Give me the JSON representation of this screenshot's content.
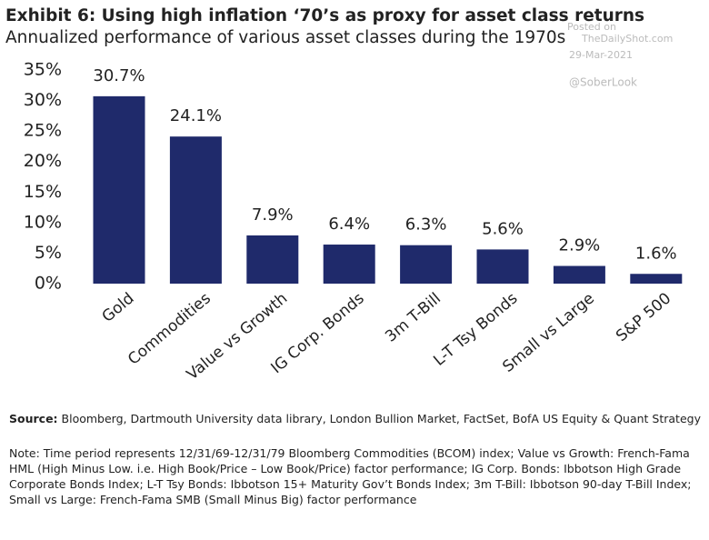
{
  "chart_data": {
    "type": "bar",
    "title": "Exhibit 6: Using high inflation ‘70’s as proxy for asset class returns",
    "subtitle": "Annualized performance of various asset classes during the 1970s",
    "categories": [
      "Gold",
      "Commodities",
      "Value vs Growth",
      "IG Corp. Bonds",
      "3m T-Bill",
      "L-T Tsy Bonds",
      "Small vs Large",
      "S&P 500"
    ],
    "values": [
      30.7,
      24.1,
      7.9,
      6.4,
      6.3,
      5.6,
      2.9,
      1.6
    ],
    "value_labels": [
      "30.7%",
      "24.1%",
      "7.9%",
      "6.4%",
      "6.3%",
      "5.6%",
      "2.9%",
      "1.6%"
    ],
    "color": "#1f2a6b",
    "ylim": [
      0,
      35
    ],
    "yticks": [
      {
        "value": 0,
        "label": "0%"
      },
      {
        "value": 5,
        "label": "5%"
      },
      {
        "value": 10,
        "label": "10%"
      },
      {
        "value": 15,
        "label": "15%"
      },
      {
        "value": 20,
        "label": "20%"
      },
      {
        "value": 25,
        "label": "25%"
      },
      {
        "value": 30,
        "label": "30%"
      },
      {
        "value": 35,
        "label": "35%"
      }
    ],
    "grid": false,
    "watermark": [
      "Posted on",
      "TheDailyShot.com",
      "29-Mar-2021",
      "@SoberLook"
    ],
    "source_label": "Source:",
    "source": "Bloomberg, Dartmouth University data library, London Bullion Market, FactSet, BofA US Equity & Quant Strategy",
    "note": "Note: Time period represents 12/31/69-12/31/79  Bloomberg Commodities (BCOM) index; Value vs Growth: French-Fama HML (High Minus Low. i.e. High Book/Price – Low Book/Price) factor performance; IG Corp. Bonds: Ibbotson  High Grade Corporate Bonds Index; L-T Tsy Bonds: Ibbotson 15+ Maturity Gov’t Bonds Index; 3m T-Bill: Ibbotson 90-day T-Bill Index; Small vs Large: French-Fama SMB (Small Minus Big) factor performance"
  }
}
